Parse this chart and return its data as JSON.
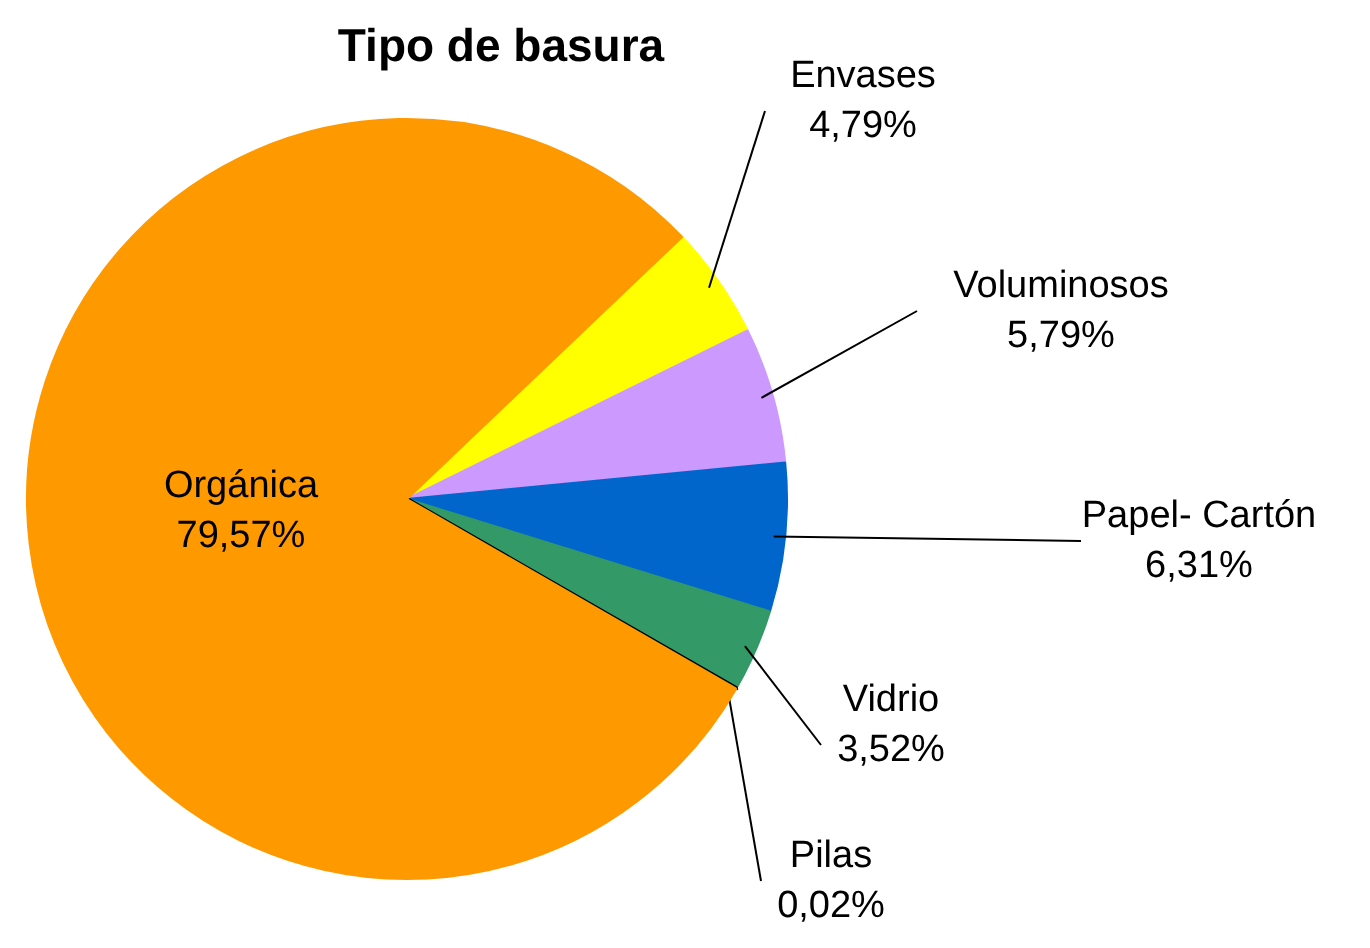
{
  "chart_data": {
    "type": "pie",
    "title": "Tipo de basura",
    "categories": [
      "Envases",
      "Voluminosos",
      "Papel- Cartón",
      "Vidrio",
      "Pilas",
      "Orgánica"
    ],
    "values": [
      4.79,
      5.79,
      6.31,
      3.52,
      0.02,
      79.57
    ],
    "colors": [
      "#ffff00",
      "#cc99ff",
      "#0066cc",
      "#339966",
      "#000000",
      "#ff9900"
    ],
    "value_labels": [
      "4,79%",
      "5,79%",
      "6,31%",
      "3,52%",
      "0,02%",
      "79,57%"
    ]
  }
}
